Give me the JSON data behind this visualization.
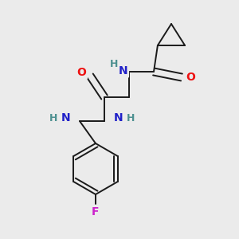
{
  "background_color": "#ebebeb",
  "bond_color": "#1a1a1a",
  "atom_colors": {
    "N": "#2020c8",
    "O": "#ee1111",
    "F": "#cc22cc",
    "H": "#4d9090"
  },
  "figsize": [
    3.0,
    3.0
  ],
  "dpi": 100
}
